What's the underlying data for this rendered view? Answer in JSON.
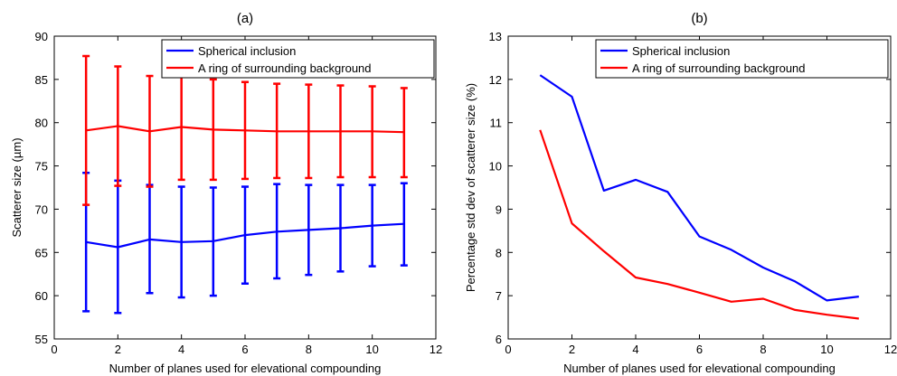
{
  "chart_data": [
    {
      "panel_label": "(a)",
      "type": "line",
      "xlabel": "Number of planes used for elevational compounding",
      "ylabel": "Scatterer size (µm)",
      "xlim": [
        0,
        12
      ],
      "ylim": [
        55,
        90
      ],
      "xticks": [
        "0",
        "2",
        "4",
        "6",
        "8",
        "10",
        "12"
      ],
      "yticks": [
        "55",
        "60",
        "65",
        "70",
        "75",
        "80",
        "85",
        "90"
      ],
      "legend_position": "top-right",
      "x": [
        1,
        2,
        3,
        4,
        5,
        6,
        7,
        8,
        9,
        10,
        11
      ],
      "series": [
        {
          "name": "Spherical inclusion",
          "color": "#0000ff",
          "values": [
            66.2,
            65.6,
            66.5,
            66.2,
            66.3,
            67.0,
            67.4,
            67.6,
            67.8,
            68.1,
            68.3
          ],
          "err_low": [
            58.2,
            58.0,
            60.3,
            59.8,
            60.0,
            61.4,
            62.0,
            62.4,
            62.8,
            63.4,
            63.5
          ],
          "err_high": [
            74.2,
            73.3,
            72.8,
            72.6,
            72.5,
            72.6,
            72.9,
            72.8,
            72.8,
            72.8,
            73.0
          ]
        },
        {
          "name": "A ring of surrounding background",
          "color": "#ff0000",
          "values": [
            79.1,
            79.6,
            79.0,
            79.5,
            79.2,
            79.1,
            79.0,
            79.0,
            79.0,
            79.0,
            78.9
          ],
          "err_low": [
            70.5,
            72.7,
            72.6,
            73.4,
            73.4,
            73.5,
            73.6,
            73.6,
            73.7,
            73.7,
            73.7
          ],
          "err_high": [
            87.7,
            86.5,
            85.4,
            85.5,
            85.0,
            84.7,
            84.5,
            84.4,
            84.3,
            84.2,
            84.0
          ]
        }
      ]
    },
    {
      "panel_label": "(b)",
      "type": "line",
      "xlabel": "Number of planes used for elevational compounding",
      "ylabel": "Percentage std dev of scatterer size (%)",
      "xlim": [
        0,
        12
      ],
      "ylim": [
        6,
        13
      ],
      "xticks": [
        "0",
        "2",
        "4",
        "6",
        "8",
        "10",
        "12"
      ],
      "yticks": [
        "6",
        "7",
        "8",
        "9",
        "10",
        "11",
        "12",
        "13"
      ],
      "legend_position": "top-right",
      "x": [
        1,
        2,
        3,
        4,
        5,
        6,
        7,
        8,
        9,
        10,
        11
      ],
      "series": [
        {
          "name": "Spherical inclusion",
          "color": "#0000ff",
          "values": [
            12.1,
            11.6,
            9.43,
            9.68,
            9.4,
            8.37,
            8.06,
            7.65,
            7.33,
            6.89,
            6.98
          ]
        },
        {
          "name": "A ring of surrounding background",
          "color": "#ff0000",
          "values": [
            10.83,
            8.67,
            8.03,
            7.42,
            7.27,
            7.07,
            6.86,
            6.93,
            6.67,
            6.56,
            6.47
          ]
        }
      ]
    }
  ]
}
